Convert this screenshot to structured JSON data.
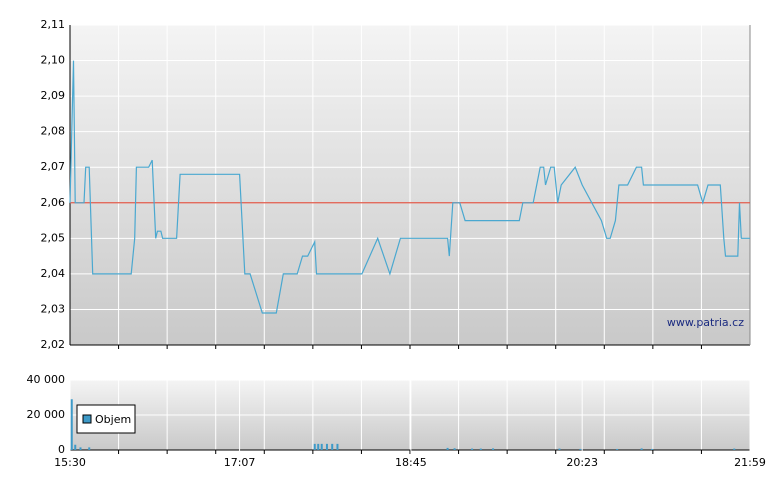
{
  "chart_data": [
    {
      "type": "line",
      "color": "#4aa8d0",
      "reference": 2.06,
      "reference_color": "#e05a4a",
      "watermark": "www.patria.cz",
      "xlim": [
        930,
        1319
      ],
      "ylim": [
        2.02,
        2.11
      ],
      "yticks": [
        {
          "value": 2.02,
          "label": "2,02"
        },
        {
          "value": 2.03,
          "label": "2,03"
        },
        {
          "value": 2.04,
          "label": "2,04"
        },
        {
          "value": 2.05,
          "label": "2,05"
        },
        {
          "value": 2.06,
          "label": "2,06"
        },
        {
          "value": 2.07,
          "label": "2,07"
        },
        {
          "value": 2.08,
          "label": "2,08"
        },
        {
          "value": 2.09,
          "label": "2,09"
        },
        {
          "value": 2.1,
          "label": "2,10"
        },
        {
          "value": 2.11,
          "label": "2,11"
        }
      ],
      "x": [
        930,
        932,
        933,
        938,
        939,
        941,
        943,
        952,
        954,
        965,
        967,
        968,
        975,
        977,
        979,
        980,
        982,
        983,
        991,
        993,
        1027,
        1030,
        1033,
        1040,
        1048,
        1052,
        1060,
        1063,
        1066,
        1070,
        1071,
        1097,
        1106,
        1113,
        1119,
        1146,
        1147,
        1149,
        1153,
        1156,
        1187,
        1189,
        1195,
        1199,
        1201,
        1202,
        1205,
        1207,
        1209,
        1211,
        1219,
        1223,
        1234,
        1237,
        1239,
        1242,
        1244,
        1249,
        1254,
        1257,
        1258,
        1289,
        1292,
        1295,
        1302,
        1304,
        1305,
        1312,
        1313,
        1314,
        1319
      ],
      "values": [
        2.06,
        2.1,
        2.06,
        2.06,
        2.07,
        2.07,
        2.04,
        2.04,
        2.04,
        2.04,
        2.05,
        2.07,
        2.07,
        2.072,
        2.05,
        2.052,
        2.052,
        2.05,
        2.05,
        2.068,
        2.068,
        2.04,
        2.04,
        2.029,
        2.029,
        2.04,
        2.04,
        2.045,
        2.045,
        2.049,
        2.04,
        2.04,
        2.05,
        2.04,
        2.05,
        2.05,
        2.045,
        2.06,
        2.06,
        2.055,
        2.055,
        2.06,
        2.06,
        2.07,
        2.07,
        2.065,
        2.07,
        2.07,
        2.06,
        2.065,
        2.07,
        2.065,
        2.055,
        2.05,
        2.05,
        2.055,
        2.065,
        2.065,
        2.07,
        2.07,
        2.065,
        2.065,
        2.06,
        2.065,
        2.065,
        2.05,
        2.045,
        2.045,
        2.06,
        2.05,
        2.05
      ]
    },
    {
      "type": "bar",
      "color": "#3d9ac8",
      "legend": "Objem",
      "xlim": [
        930,
        1319
      ],
      "xticks": [
        {
          "value": 930,
          "label": "15:30"
        },
        {
          "value": 1027,
          "label": "17:07"
        },
        {
          "value": 1125,
          "label": "18:45"
        },
        {
          "value": 1223,
          "label": "20:23"
        },
        {
          "value": 1319,
          "label": "21:59"
        }
      ],
      "ylim": [
        0,
        40000
      ],
      "yticks": [
        0,
        {
          "value": 20000,
          "label": "20 000"
        },
        {
          "value": 40000,
          "label": "40 000"
        }
      ],
      "x": [
        931,
        933,
        936,
        941,
        1070,
        1072,
        1074,
        1077,
        1080,
        1083,
        1146,
        1150,
        1160,
        1165,
        1172,
        1210,
        1222,
        1243,
        1257,
        1263,
        1310
      ],
      "values": [
        29000,
        3000,
        1500,
        1500,
        3500,
        3500,
        3500,
        3500,
        3500,
        3500,
        1200,
        1000,
        800,
        800,
        900,
        800,
        600,
        600,
        900,
        600,
        800
      ]
    }
  ]
}
